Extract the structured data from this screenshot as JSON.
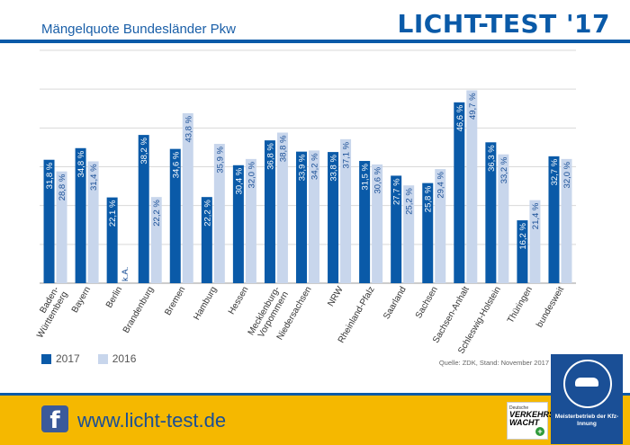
{
  "header": {
    "title": "Mängelquote Bundesländer Pkw",
    "brand": "LICHT-TEST '17"
  },
  "chart_data": {
    "type": "bar",
    "title": "Mängelquote Bundesländer Pkw",
    "categories": [
      "Baden-\nWürttemberg",
      "Bayern",
      "Berlin",
      "Brandenburg",
      "Bremen",
      "Hamburg",
      "Hessen",
      "Mecklenburg-\nVorpommern",
      "Niedersachsen",
      "NRW",
      "Rheinland-Pfalz",
      "Saarland",
      "Sachsen",
      "Sachsen-Anhalt",
      "Schleswig-Holstein",
      "Thüringen",
      "bundesweit"
    ],
    "series": [
      {
        "name": "2017",
        "values": [
          31.8,
          34.8,
          22.1,
          38.2,
          34.6,
          22.2,
          30.4,
          36.8,
          33.9,
          33.8,
          31.5,
          27.7,
          25.8,
          46.6,
          36.3,
          16.2,
          32.7
        ],
        "labels": [
          "31,8 %",
          "34,8 %",
          "22,1 %",
          "38,2 %",
          "34,6 %",
          "22,2 %",
          "30,4 %",
          "36,8 %",
          "33,9 %",
          "33,8 %",
          "31,5 %",
          "27,7 %",
          "25,8 %",
          "46,6 %",
          "36,3 %",
          "16,2 %",
          "32,7 %"
        ]
      },
      {
        "name": "2016",
        "values": [
          28.8,
          31.4,
          null,
          22.2,
          43.8,
          35.9,
          32.0,
          38.8,
          34.2,
          37.1,
          30.6,
          25.2,
          29.4,
          49.7,
          33.2,
          21.4,
          32.0
        ],
        "labels": [
          "28,8 %",
          "31,4 %",
          "k.A.",
          "22,2 %",
          "43,8 %",
          "35,9 %",
          "32,0 %",
          "38,8 %",
          "34,2 %",
          "37,1 %",
          "30,6 %",
          "25,2 %",
          "29,4 %",
          "49,7 %",
          "33,2 %",
          "21,4 %",
          "32,0 %"
        ]
      }
    ],
    "ylim": [
      0,
      60
    ],
    "grid": true,
    "legend": "bottom-left",
    "colors": {
      "2017": "#0a5aa8",
      "2016": "#c8d6ec"
    }
  },
  "legend": {
    "items": [
      {
        "label": "2017",
        "color": "#0a5aa8"
      },
      {
        "label": "2016",
        "color": "#c8d6ec"
      }
    ]
  },
  "source": "Quelle: ZDK, Stand: November 2017",
  "footer": {
    "url": "www.licht-test.de",
    "facebook_icon": "facebook-icon",
    "fb_glyph": "f",
    "vw_small": "Deutsche",
    "vw_main": "VERKEHRS WACHT",
    "vw_plus": "+",
    "badge_text": "Meisterbetrieb der Kfz-Innung"
  }
}
